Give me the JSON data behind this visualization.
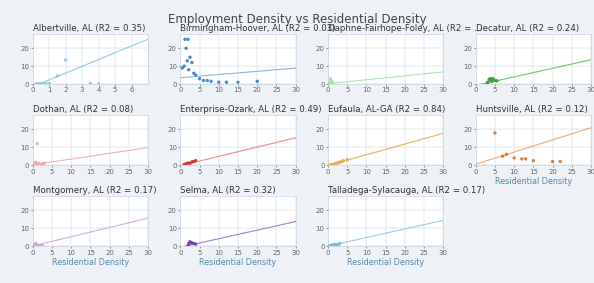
{
  "title": "Employment Density vs Residential Density",
  "xlabel": "Residential Density",
  "bg_color": "#eef2f7",
  "panel_bg": "#ffffff",
  "grid_color": "#c8d4e0",
  "label_fontsize": 6.2,
  "tick_fontsize": 5.0,
  "axis_label_fontsize": 5.8,
  "title_fontsize": 8.5,
  "panels": [
    {
      "label": "Albertville, AL (R2 = 0.35)",
      "color": "#7ec8e3",
      "line_color": "#7ec8e3",
      "points": [
        [
          0.2,
          0.05
        ],
        [
          0.3,
          0.05
        ],
        [
          0.4,
          0.05
        ],
        [
          0.5,
          0.1
        ],
        [
          0.6,
          0.05
        ],
        [
          0.8,
          0.3
        ],
        [
          1.0,
          0.2
        ],
        [
          1.5,
          4.5
        ],
        [
          2.0,
          13.5
        ],
        [
          3.5,
          0.3
        ],
        [
          4.0,
          0.1
        ]
      ],
      "xlim": [
        0,
        7
      ],
      "ylim": [
        0,
        28
      ],
      "xticks": [
        0,
        1,
        2,
        3,
        4,
        5,
        6
      ],
      "yticks": [
        0,
        10,
        20
      ],
      "slope": 3.8,
      "intercept": -1.5
    },
    {
      "label": "Birmingham-Hoover, AL (R2 = 0.03)",
      "color": "#3a7ec8",
      "line_color": "#7ab0d8",
      "points": [
        [
          0.5,
          9
        ],
        [
          1.0,
          10
        ],
        [
          1.2,
          25
        ],
        [
          1.5,
          20
        ],
        [
          1.8,
          13
        ],
        [
          2.0,
          25
        ],
        [
          2.2,
          8
        ],
        [
          2.5,
          15
        ],
        [
          3.0,
          12
        ],
        [
          3.5,
          6
        ],
        [
          4.0,
          5
        ],
        [
          5.0,
          3
        ],
        [
          6.0,
          2
        ],
        [
          7.0,
          2
        ],
        [
          8.0,
          1.5
        ],
        [
          10.0,
          1
        ],
        [
          12.0,
          1
        ],
        [
          15.0,
          1
        ],
        [
          20.0,
          1.5
        ]
      ],
      "xlim": [
        0,
        30
      ],
      "ylim": [
        0,
        28
      ],
      "xticks": [
        0,
        5,
        10,
        15,
        20,
        25,
        30
      ],
      "yticks": [
        0,
        10,
        20
      ],
      "slope": 0.18,
      "intercept": 3.5
    },
    {
      "label": "Daphne-Fairhope-Foley, AL (R2 = ...",
      "color": "#a8e0a8",
      "line_color": "#a8e0a8",
      "points": [
        [
          0.2,
          0.2
        ],
        [
          0.3,
          0.4
        ],
        [
          0.4,
          0.5
        ],
        [
          0.5,
          0.8
        ],
        [
          0.6,
          3.0
        ],
        [
          0.8,
          2.0
        ],
        [
          1.0,
          1.5
        ],
        [
          1.2,
          0.5
        ]
      ],
      "xlim": [
        0,
        30
      ],
      "ylim": [
        0,
        28
      ],
      "xticks": [
        0,
        5,
        10,
        15,
        20,
        25,
        30
      ],
      "yticks": [
        0,
        10,
        20
      ],
      "slope": 0.22,
      "intercept": 0.2
    },
    {
      "label": "Decatur, AL (R2 = 0.24)",
      "color": "#3a9a3a",
      "line_color": "#60c060",
      "points": [
        [
          3.0,
          0.5
        ],
        [
          3.2,
          1.0
        ],
        [
          3.5,
          2.5
        ],
        [
          3.8,
          3.0
        ],
        [
          4.0,
          2.5
        ],
        [
          4.2,
          1.5
        ],
        [
          4.5,
          3.0
        ],
        [
          5.0,
          2.0
        ],
        [
          5.5,
          1.8
        ]
      ],
      "xlim": [
        0,
        30
      ],
      "ylim": [
        0,
        28
      ],
      "xticks": [
        0,
        5,
        10,
        15,
        20,
        25,
        30
      ],
      "yticks": [
        0,
        10,
        20
      ],
      "slope": 0.48,
      "intercept": -0.8
    },
    {
      "label": "Dothan, AL (R2 = 0.08)",
      "color": "#f0a8a8",
      "line_color": "#f0a8a8",
      "points": [
        [
          0.2,
          0.2
        ],
        [
          0.3,
          0.3
        ],
        [
          0.5,
          0.5
        ],
        [
          0.6,
          1.0
        ],
        [
          0.8,
          1.5
        ],
        [
          1.0,
          0.5
        ],
        [
          1.2,
          12.0
        ],
        [
          1.5,
          1.0
        ],
        [
          2.0,
          0.5
        ],
        [
          2.5,
          0.5
        ],
        [
          3.0,
          1.0
        ]
      ],
      "xlim": [
        0,
        30
      ],
      "ylim": [
        0,
        28
      ],
      "xticks": [
        0,
        5,
        10,
        15,
        20,
        25,
        30
      ],
      "yticks": [
        0,
        10,
        20
      ],
      "slope": 0.32,
      "intercept": 0.2
    },
    {
      "label": "Enterprise-Ozark, AL (R2 = 0.49)",
      "color": "#c83030",
      "line_color": "#e88080",
      "points": [
        [
          1.0,
          0.3
        ],
        [
          1.5,
          0.8
        ],
        [
          2.0,
          1.2
        ],
        [
          2.5,
          1.0
        ],
        [
          3.0,
          1.8
        ],
        [
          3.5,
          2.0
        ],
        [
          4.0,
          2.5
        ]
      ],
      "xlim": [
        0,
        30
      ],
      "ylim": [
        0,
        28
      ],
      "xticks": [
        0,
        5,
        10,
        15,
        20,
        25,
        30
      ],
      "yticks": [
        0,
        10,
        20
      ],
      "slope": 0.52,
      "intercept": -0.3
    },
    {
      "label": "Eufaula, AL-GA (R2 = 0.84)",
      "color": "#e8a848",
      "line_color": "#e8a848",
      "points": [
        [
          0.5,
          0.1
        ],
        [
          1.0,
          0.3
        ],
        [
          1.5,
          0.5
        ],
        [
          2.0,
          0.8
        ],
        [
          2.5,
          1.2
        ],
        [
          3.0,
          1.5
        ],
        [
          3.5,
          2.0
        ],
        [
          4.0,
          2.5
        ],
        [
          5.0,
          3.0
        ]
      ],
      "xlim": [
        0,
        30
      ],
      "ylim": [
        0,
        28
      ],
      "xticks": [
        0,
        5,
        10,
        15,
        20,
        25,
        30
      ],
      "yticks": [
        0,
        10,
        20
      ],
      "slope": 0.6,
      "intercept": -0.2
    },
    {
      "label": "Huntsville, AL (R2 = 0.12)",
      "color": "#e07020",
      "line_color": "#f0a060",
      "points": [
        [
          5.0,
          18
        ],
        [
          7.0,
          5
        ],
        [
          8.0,
          6
        ],
        [
          10.0,
          4
        ],
        [
          12.0,
          3.5
        ],
        [
          13.0,
          3.5
        ],
        [
          15.0,
          2.5
        ],
        [
          20.0,
          2.0
        ],
        [
          22.0,
          2.0
        ]
      ],
      "xlim": [
        0,
        30
      ],
      "ylim": [
        0,
        28
      ],
      "xticks": [
        0,
        5,
        10,
        15,
        20,
        25,
        30
      ],
      "yticks": [
        0,
        10,
        20
      ],
      "slope": 0.68,
      "intercept": 0.5
    },
    {
      "label": "Montgomery, AL (R2 = 0.17)",
      "color": "#c8a8d8",
      "line_color": "#c8a8d8",
      "points": [
        [
          0.2,
          0.1
        ],
        [
          0.3,
          0.2
        ],
        [
          0.5,
          0.5
        ],
        [
          0.7,
          0.8
        ],
        [
          0.8,
          1.5
        ],
        [
          1.0,
          0.8
        ],
        [
          1.2,
          0.5
        ],
        [
          1.5,
          0.4
        ],
        [
          2.0,
          0.3
        ],
        [
          2.5,
          0.3
        ]
      ],
      "xlim": [
        0,
        30
      ],
      "ylim": [
        0,
        28
      ],
      "xticks": [
        0,
        5,
        10,
        15,
        20,
        25,
        30
      ],
      "yticks": [
        0,
        10,
        20
      ],
      "slope": 0.52,
      "intercept": 0.1
    },
    {
      "label": "Selma, AL (R2 = 0.32)",
      "color": "#7040b0",
      "line_color": "#9870c8",
      "points": [
        [
          2.0,
          0.3
        ],
        [
          2.2,
          1.5
        ],
        [
          2.5,
          2.5
        ],
        [
          2.8,
          2.0
        ],
        [
          3.0,
          1.8
        ],
        [
          3.5,
          1.5
        ],
        [
          4.0,
          1.2
        ]
      ],
      "xlim": [
        0,
        30
      ],
      "ylim": [
        0,
        28
      ],
      "xticks": [
        0,
        5,
        10,
        15,
        20,
        25,
        30
      ],
      "yticks": [
        0,
        10,
        20
      ],
      "slope": 0.48,
      "intercept": -0.6
    },
    {
      "label": "Talladega-Sylacauga, AL (R2 = 0.17)",
      "color": "#70b8d8",
      "line_color": "#90c8e0",
      "points": [
        [
          0.3,
          0.1
        ],
        [
          0.5,
          0.2
        ],
        [
          0.8,
          0.4
        ],
        [
          1.0,
          0.6
        ],
        [
          1.5,
          0.8
        ],
        [
          2.0,
          1.0
        ],
        [
          2.5,
          0.5
        ],
        [
          3.0,
          1.5
        ]
      ],
      "xlim": [
        0,
        30
      ],
      "ylim": [
        0,
        28
      ],
      "xticks": [
        0,
        5,
        10,
        15,
        20,
        25,
        30
      ],
      "yticks": [
        0,
        10,
        20
      ],
      "slope": 0.48,
      "intercept": 0.05
    }
  ],
  "nrows": 3,
  "ncols": 4
}
